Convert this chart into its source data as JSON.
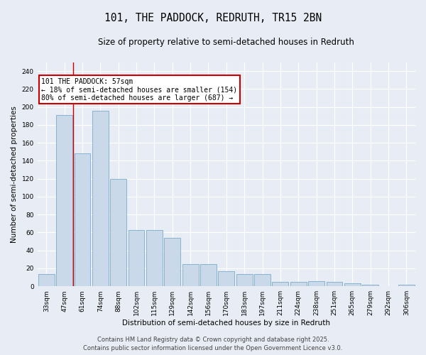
{
  "title": "101, THE PADDOCK, REDRUTH, TR15 2BN",
  "subtitle": "Size of property relative to semi-detached houses in Redruth",
  "xlabel": "Distribution of semi-detached houses by size in Redruth",
  "ylabel": "Number of semi-detached properties",
  "categories": [
    "33sqm",
    "47sqm",
    "61sqm",
    "74sqm",
    "88sqm",
    "102sqm",
    "115sqm",
    "129sqm",
    "142sqm",
    "156sqm",
    "170sqm",
    "183sqm",
    "197sqm",
    "211sqm",
    "224sqm",
    "238sqm",
    "251sqm",
    "265sqm",
    "279sqm",
    "292sqm",
    "306sqm"
  ],
  "values": [
    14,
    191,
    148,
    196,
    120,
    63,
    63,
    54,
    25,
    25,
    17,
    14,
    14,
    5,
    5,
    6,
    5,
    3,
    2,
    0,
    2
  ],
  "bar_color": "#c9d9ea",
  "bar_edge_color": "#7aaac8",
  "redline_x": 1.5,
  "annotation_text": "101 THE PADDOCK: 57sqm\n← 18% of semi-detached houses are smaller (154)\n80% of semi-detached houses are larger (687) →",
  "annotation_box_facecolor": "#ffffff",
  "annotation_box_edgecolor": "#cc0000",
  "footer_line1": "Contains HM Land Registry data © Crown copyright and database right 2025.",
  "footer_line2": "Contains public sector information licensed under the Open Government Licence v3.0.",
  "ylim": [
    0,
    250
  ],
  "yticks": [
    0,
    20,
    40,
    60,
    80,
    100,
    120,
    140,
    160,
    180,
    200,
    220,
    240
  ],
  "bg_color": "#e8ecf4",
  "plot_bg_color": "#e8ecf4",
  "grid_color": "#ffffff",
  "title_fontsize": 10.5,
  "subtitle_fontsize": 8.5,
  "axis_label_fontsize": 7.5,
  "tick_fontsize": 6.5,
  "annotation_fontsize": 7,
  "footer_fontsize": 6
}
